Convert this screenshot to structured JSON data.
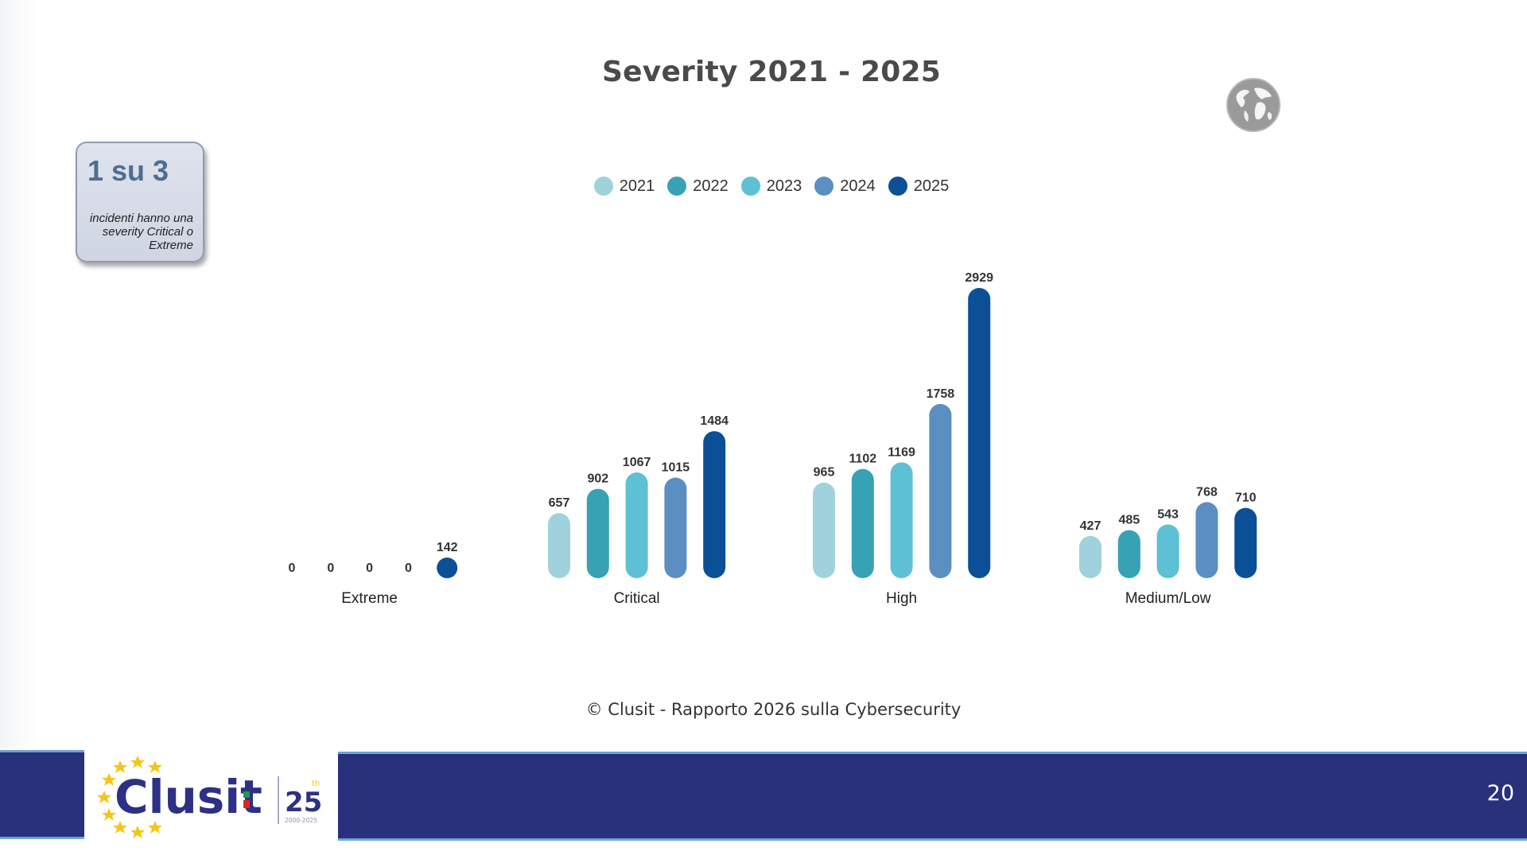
{
  "slide": {
    "title": "Severity 2021 - 2025",
    "callout": {
      "headline": "1 su 3",
      "text": "incidenti hanno una severity Critical o Extreme"
    },
    "copyright": "© Clusit - Rapporto 2026 sulla Cybersecurity",
    "page_number": "20",
    "logo": {
      "brand": "Clusit",
      "anniversary": "25",
      "suffix": "th",
      "years": "2000-2025"
    },
    "icons": {
      "globe": "globe-icon"
    }
  },
  "colors": {
    "2021": "#9fd2dc",
    "2022": "#36a2b4",
    "2023": "#5ec0d4",
    "2024": "#5b8fc2",
    "2025": "#0b4f97",
    "footer": "#29307c",
    "footer_accent": "#6aa7d8",
    "callout_headline": "#4d6e93"
  },
  "chart_data": {
    "type": "bar",
    "title": "Severity 2021 - 2025",
    "xlabel": "",
    "ylabel": "",
    "grid": false,
    "legend_position": "top-center",
    "categories": [
      "Extreme",
      "Critical",
      "High",
      "Medium/Low"
    ],
    "series": [
      {
        "name": "2021",
        "values": [
          0,
          657,
          965,
          427
        ]
      },
      {
        "name": "2022",
        "values": [
          0,
          902,
          1102,
          485
        ]
      },
      {
        "name": "2023",
        "values": [
          0,
          1067,
          1169,
          543
        ]
      },
      {
        "name": "2024",
        "values": [
          0,
          1015,
          1758,
          768
        ]
      },
      {
        "name": "2025",
        "values": [
          142,
          1484,
          2929,
          710
        ]
      }
    ],
    "ylim": [
      0,
      2929
    ]
  }
}
